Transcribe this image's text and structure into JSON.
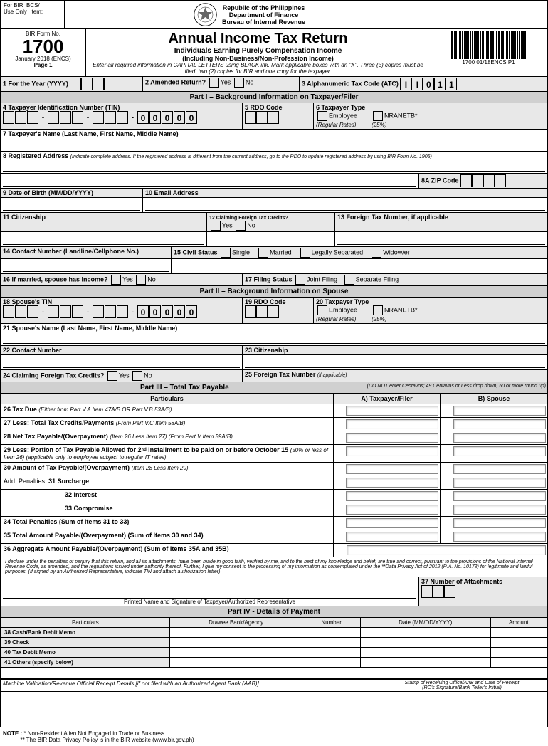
{
  "for_bir": "For BIR",
  "use_only": "Use Only",
  "bcs": "BCS/",
  "item": "Item:",
  "republic": "Republic of the Philippines",
  "dept": "Department of Finance",
  "bureau": "Bureau of Internal Revenue",
  "form_no_label": "BIR Form No.",
  "form_no": "1700",
  "form_date": "January 2018 (ENCS)",
  "page": "Page 1",
  "title": "Annual Income Tax Return",
  "subtitle1": "Individuals Earning Purely Compensation Income",
  "subtitle2": "(Including Non-Business/Non-Profession Income)",
  "instruction": "Enter all required information in CAPITAL LETTERS using BLACK ink. Mark applicable boxes with an \"X\". Three (3) copies must be filed: two (2) copies for BIR and one copy for the taxpayer.",
  "barcode_text": "1700 01/18ENCS P1",
  "line1": {
    "year_label": "1 For the Year (YYYY)",
    "amended_label": "2 Amended Return?",
    "yes": "Yes",
    "no": "No",
    "atc_label": "3 Alphanumeric Tax Code (ATC)",
    "atc_val": [
      "I",
      "I",
      "0",
      "1",
      "1"
    ]
  },
  "part1_header": "Part I – Background Information on Taxpayer/Filer",
  "line4": "4 Taxpayer Identification Number (TIN)",
  "line5": "5 RDO Code",
  "line6": "6 Taxpayer Type",
  "employee": "Employee",
  "reg_rates": "(Regular Rates)",
  "nranetb": "NRANETB*",
  "pct25": "(25%)",
  "tin_zeros": [
    "0",
    "0",
    "0",
    "0",
    "0"
  ],
  "line7": "7 Taxpayer's Name (Last Name, First Name, Middle Name)",
  "line8": "8 Registered Address",
  "line8_note": "(Indicate complete address. If the registered address is different from the current address, go to the RDO to update registered address by using BIR Form No. 1905)",
  "line8a": "8A ZIP Code",
  "line9": "9 Date of Birth (MM/DD/YYYY)",
  "line10": "10 Email Address",
  "line11": "11 Citizenship",
  "line12": "12 Claiming Foreign Tax Credits?",
  "line13": "13 Foreign Tax Number, if applicable",
  "line14": "14 Contact Number (Landline/Cellphone No.)",
  "line15": "15 Civil Status",
  "single": "Single",
  "married": "Married",
  "legally_sep": "Legally Separated",
  "widower": "Widow/er",
  "line16": "16 If married, spouse has income?",
  "line17": "17 Filing Status",
  "joint": "Joint Filing",
  "separate": "Separate Filing",
  "part2_header": "Part II – Background Information on Spouse",
  "line18": "18 Spouse's TIN",
  "line19": "19 RDO Code",
  "line20": "20 Taxpayer Type",
  "line21": "21 Spouse's Name (Last Name, First Name, Middle Name)",
  "line22": "22 Contact Number",
  "line23": "23 Citizenship",
  "line24": "24 Claiming Foreign Tax Credits?",
  "line25": "25 Foreign Tax Number",
  "if_applicable": "(if applicable)",
  "part3_header": "Part III – Total Tax Payable",
  "part3_note": "(DO NOT enter Centavos; 49 Centavos or Less drop down; 50 or more round up)",
  "particulars": "Particulars",
  "col_a": "A) Taxpayer/Filer",
  "col_b": "B) Spouse",
  "rows": [
    {
      "n": "26",
      "label": "Tax Due",
      "note": "(Either from Part V.A Item 47A/B OR Part V.B 53A/B)",
      "bold": true
    },
    {
      "n": "27",
      "label": "Less: Total Tax Credits/Payments",
      "note": "(From Part V.C Item 58A/B)",
      "bold": true
    },
    {
      "n": "28",
      "label": "Net Tax Payable/(Overpayment)",
      "note": "(Item 26 Less Item 27) (From Part V Item 59A/B)",
      "bold": true
    },
    {
      "n": "29",
      "label": "Less: Portion of Tax Payable Allowed for 2ⁿᵈ Installment to be paid on or before October 15",
      "note": "(50% or less of Item 26) (applicable only to employee subject to regular IT rates)",
      "bold": true
    },
    {
      "n": "30",
      "label": "Amount of Tax Payable/(Overpayment)",
      "note": "(Item 28 Less Item 29)",
      "bold": true
    }
  ],
  "penalties_label": "Add: Penalties",
  "p31": "31 Surcharge",
  "p32": "32 Interest",
  "p33": "33 Compromise",
  "line34": "34 Total Penalties (Sum of Items 31 to 33)",
  "line35": "35 Total Amount Payable/(Overpayment) (Sum of Items 30 and 34)",
  "line36": "36 Aggregate Amount Payable/(Overpayment) (Sum of Items 35A and 35B)",
  "declaration": "I declare under the penalties of perjury that this return, and all its attachments, have been made in good faith, verified by me, and to the best of my knowledge and belief, are true and correct, pursuant to the provisions of the National Internal Revenue Code, as amended, and the regulations issued under authority thereof. Further, I give my consent to the processing of my information as contemplated under the **Data Privacy Act of 2012 (R.A. No. 10173) for legitimate and lawful purposes. (If signed by an Authorized Representative, indicate TIN and attach authorization letter)",
  "line37": "37 Number of Attachments",
  "sig_label": "Printed Name and Signature of Taxpayer/Authorized Representative",
  "part4_header": "Part IV - Details of Payment",
  "pay_cols": [
    "Particulars",
    "Drawee Bank/Agency",
    "Number",
    "Date (MM/DD/YYYY)",
    "Amount"
  ],
  "pay_rows": [
    "38 Cash/Bank Debit Memo",
    "39 Check",
    "40 Tax Debit Memo",
    "41 Others (specify below)"
  ],
  "machine_val": "Machine Validation/Revenue Official Receipt Details [if not filed with an Authorized Agent Bank (AAB)]",
  "stamp": "Stamp of Receiving Office/AAB and Date of Receipt",
  "stamp2": "(RO's Signature/Bank Teller's Initial)",
  "note_label": "NOTE :",
  "note1": "* Non-Resident Alien Not Engaged in Trade or Business",
  "note2": "** The BIR Data Privacy Policy is in the BIR website (www.bir.gov.ph)"
}
